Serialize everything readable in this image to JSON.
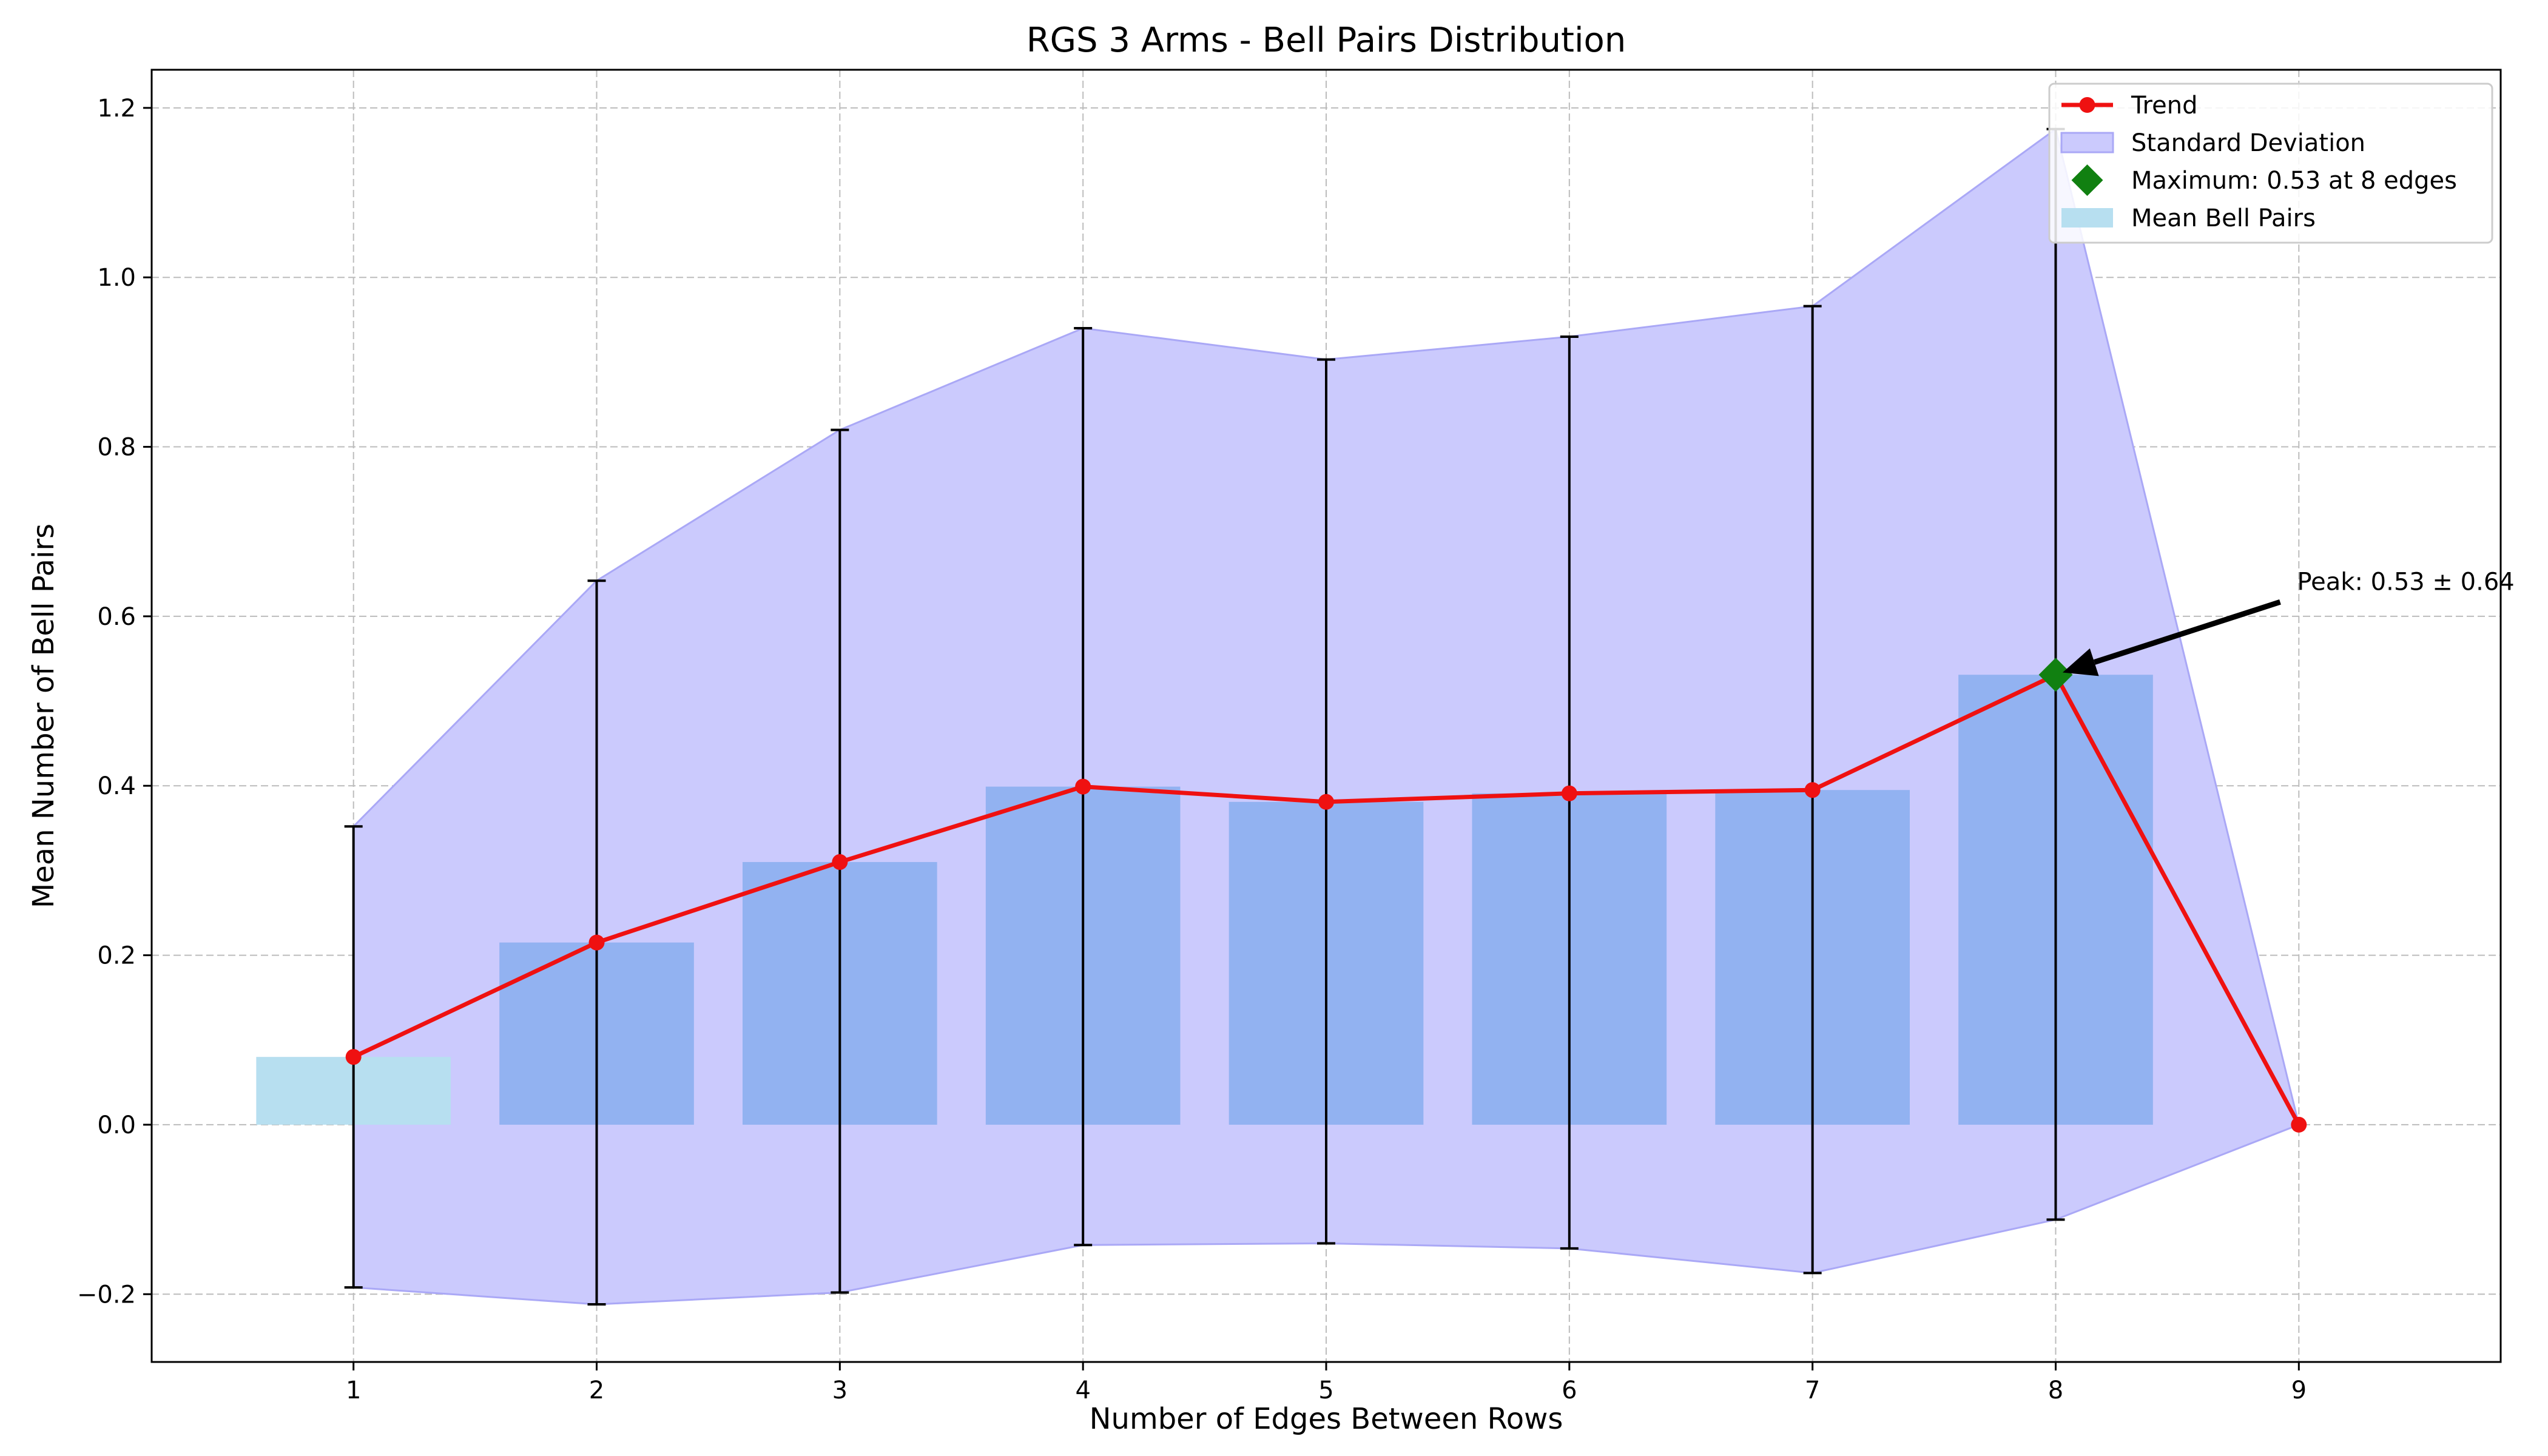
{
  "chart_data": {
    "type": "bar",
    "title": "RGS 3 Arms - Bell Pairs Distribution",
    "xlabel": "Number of Edges Between Rows",
    "ylabel": "Mean Number of Bell Pairs",
    "xlim": [
      0.17,
      9.83
    ],
    "ylim": [
      -0.28,
      1.245
    ],
    "xticks": [
      "1",
      "2",
      "3",
      "4",
      "5",
      "6",
      "7",
      "8",
      "9"
    ],
    "yticks": [
      "−0.2",
      "0.0",
      "0.2",
      "0.4",
      "0.6",
      "0.8",
      "1.0",
      "1.2"
    ],
    "ytick_values": [
      -0.2,
      0.0,
      0.2,
      0.4,
      0.6,
      0.8,
      1.0,
      1.2
    ],
    "grid": true,
    "legend_position": "top-right",
    "x": [
      1,
      2,
      3,
      4,
      5,
      6,
      7,
      8,
      9
    ],
    "series": [
      {
        "name": "Mean Bell Pairs",
        "kind": "bar",
        "values": [
          0.08,
          0.215,
          0.31,
          0.399,
          0.381,
          0.391,
          0.395,
          0.531,
          0.0
        ]
      },
      {
        "name": "Trend",
        "kind": "line",
        "values": [
          0.08,
          0.215,
          0.31,
          0.399,
          0.381,
          0.391,
          0.395,
          0.531,
          0.0
        ]
      },
      {
        "name": "Standard Deviation",
        "kind": "band",
        "upper": [
          0.352,
          0.642,
          0.82,
          0.94,
          0.903,
          0.93,
          0.966,
          1.175,
          0.0
        ],
        "lower": [
          -0.192,
          -0.212,
          -0.198,
          -0.142,
          -0.14,
          -0.146,
          -0.175,
          -0.112,
          0.0
        ]
      },
      {
        "name": "Maximum: 0.53 at 8 edges",
        "kind": "marker",
        "x": 8,
        "y": 0.531
      }
    ],
    "colors": {
      "bar_highlight": "#92b2f1",
      "bar_first": "#b7dff0",
      "band": "#cbcafd",
      "band_edge": "#aaa8f6",
      "trend": "#ef1111",
      "marker": "#118011",
      "errorbar": "#000000",
      "grid": "#bcbcbc"
    },
    "annotation": {
      "text": "Peak: 0.53 ± 0.64",
      "target_x": 8,
      "target_y": 0.531
    },
    "legend": [
      {
        "label": "Trend",
        "symbol": "line-marker"
      },
      {
        "label": "Standard Deviation",
        "symbol": "patch-band"
      },
      {
        "label": "Maximum: 0.53 at 8 edges",
        "symbol": "diamond"
      },
      {
        "label": "Mean Bell Pairs",
        "symbol": "patch-bar"
      }
    ]
  }
}
